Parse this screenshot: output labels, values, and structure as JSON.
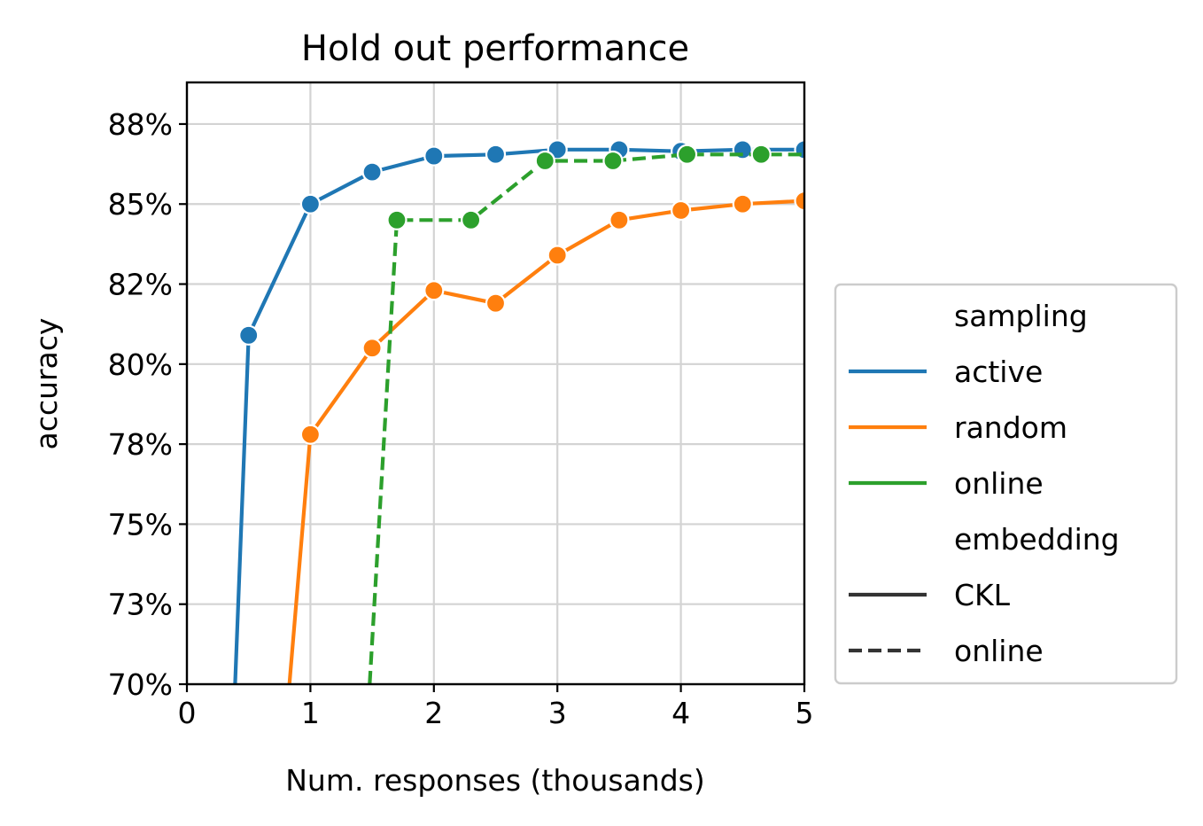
{
  "chart_data": {
    "type": "line",
    "title": "Hold out performance",
    "xlabel": "Num. responses (thousands)",
    "ylabel": "accuracy",
    "xlim": [
      0,
      5
    ],
    "ylim": [
      70,
      88.8
    ],
    "x_ticks": [
      0,
      1,
      2,
      3,
      4,
      5
    ],
    "x_tick_labels": [
      "0",
      "1",
      "2",
      "3",
      "4",
      "5"
    ],
    "y_ticks": [
      70,
      72.5,
      75,
      77.5,
      80,
      82.5,
      85,
      87.5
    ],
    "y_tick_labels": [
      "70%",
      "73%",
      "75%",
      "78%",
      "80%",
      "82%",
      "85%",
      "88%"
    ],
    "grid": true,
    "legend_position": "outside right",
    "legend": {
      "hue_title": "sampling",
      "style_title": "embedding",
      "hue_entries": [
        "active",
        "random",
        "online"
      ],
      "style_entries": [
        "CKL",
        "online"
      ]
    },
    "series": [
      {
        "name": "active",
        "embedding": "CKL",
        "color": "#1f77b4",
        "dash": "solid",
        "line_x": [
          0.39,
          0.5,
          1.0,
          1.5,
          2.0,
          2.5,
          3.0,
          3.5,
          4.0,
          4.5,
          5.0
        ],
        "line_y": [
          70.0,
          80.9,
          85.0,
          86.0,
          86.5,
          86.55,
          86.7,
          86.7,
          86.65,
          86.7,
          86.7
        ],
        "marker_x": [
          0.5,
          1.0,
          1.5,
          2.0,
          2.5,
          3.0,
          3.5,
          4.0,
          4.5,
          5.0
        ],
        "marker_y": [
          80.9,
          85.0,
          86.0,
          86.5,
          86.55,
          86.7,
          86.7,
          86.65,
          86.7,
          86.7
        ]
      },
      {
        "name": "random",
        "embedding": "CKL",
        "color": "#ff7f0e",
        "dash": "solid",
        "line_x": [
          0.83,
          1.0,
          1.5,
          2.0,
          2.5,
          3.0,
          3.5,
          4.0,
          4.5,
          5.0
        ],
        "line_y": [
          70.0,
          77.8,
          80.5,
          82.3,
          81.9,
          83.4,
          84.5,
          84.8,
          85.0,
          85.1
        ],
        "marker_x": [
          1.0,
          1.5,
          2.0,
          2.5,
          3.0,
          3.5,
          4.0,
          4.5,
          5.0
        ],
        "marker_y": [
          77.8,
          80.5,
          82.3,
          81.9,
          83.4,
          84.5,
          84.8,
          85.0,
          85.1
        ]
      },
      {
        "name": "online",
        "embedding": "online",
        "color": "#2ca02c",
        "dash": "dashed",
        "line_x": [
          1.48,
          1.7,
          2.3,
          2.9,
          3.45,
          4.05,
          4.65,
          5.0
        ],
        "line_y": [
          70.0,
          84.5,
          84.5,
          86.35,
          86.35,
          86.55,
          86.55,
          86.55
        ],
        "marker_x": [
          1.7,
          2.3,
          2.9,
          3.45,
          4.05,
          4.65
        ],
        "marker_y": [
          84.5,
          84.5,
          86.35,
          86.35,
          86.55,
          86.55
        ]
      }
    ]
  }
}
